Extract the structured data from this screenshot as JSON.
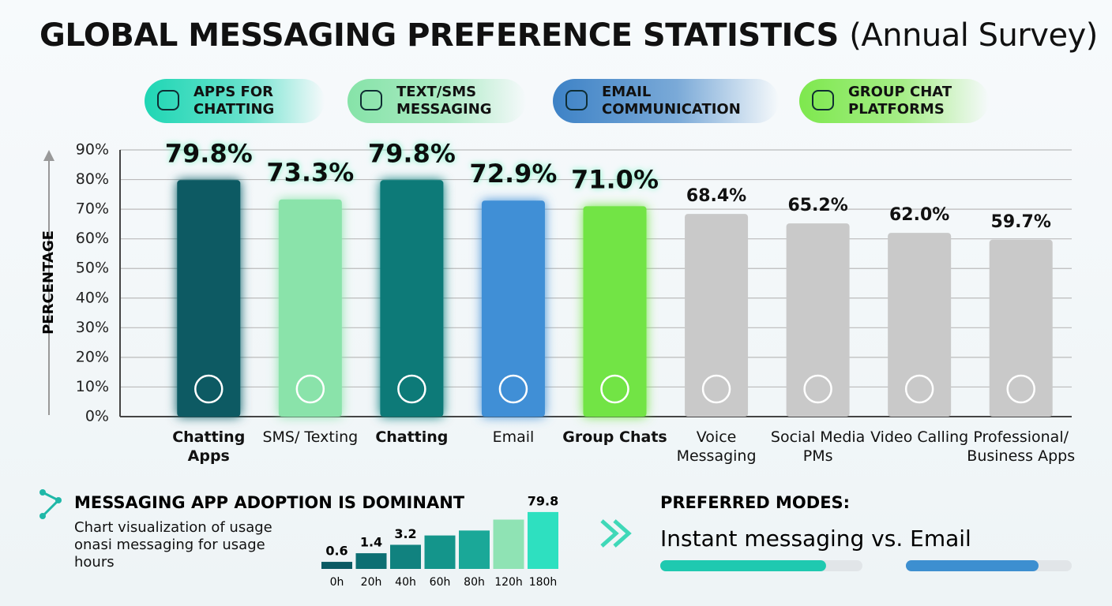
{
  "title": "GLOBAL MESSAGING PREFERENCE STATISTICS",
  "subtitle": "(Annual Survey)",
  "legend": [
    {
      "label": "APPS FOR CHATTING",
      "color": "#1fd6b4"
    },
    {
      "label": "TEXT/SMS MESSAGING",
      "color": "#86e3a8"
    },
    {
      "label": "EMAIL COMMUNICATION",
      "color": "#3d82c6"
    },
    {
      "label": "GROUP CHAT PLATFORMS",
      "color": "#7ee84e"
    }
  ],
  "chart_data": [
    {
      "type": "bar",
      "y_label": "PERCENTAGE",
      "categories": [
        "Chatting Apps",
        "SMS/ Texting",
        "Chatting",
        "Email",
        "Group Chats",
        "Voice Messaging",
        "Social Media PMs",
        "Video Calling",
        "Professional/ Business Apps"
      ],
      "values": [
        79.8,
        73.3,
        79.8,
        72.9,
        71.0,
        68.4,
        65.2,
        62.0,
        59.7
      ],
      "value_labels": [
        "79.8%",
        "73.3%",
        "79.8%",
        "72.9%",
        "71.0%",
        "68.4%",
        "65.2%",
        "62.0%",
        "59.7%"
      ],
      "colors": [
        "#0b5a63",
        "#8ae3aa",
        "#0b7a78",
        "#3f8fd6",
        "#72e445",
        "#c9c9c9",
        "#c9c9c9",
        "#c9c9c9",
        "#c9c9c9"
      ],
      "highlighted": [
        true,
        true,
        true,
        true,
        true,
        false,
        false,
        false,
        false
      ],
      "ylim": [
        0,
        90
      ],
      "yticks": [
        {
          "value": 0,
          "label": "0%"
        },
        {
          "value": 10,
          "label": "10%"
        },
        {
          "value": 20,
          "label": "20%"
        },
        {
          "value": 30,
          "label": "30%"
        },
        {
          "value": 40,
          "label": "40%"
        },
        {
          "value": 50,
          "label": "50%"
        },
        {
          "value": 60,
          "label": "60%"
        },
        {
          "value": 70,
          "label": "70%"
        },
        {
          "value": 80,
          "label": "80%"
        },
        {
          "value": 90,
          "label": "90%"
        }
      ],
      "grid": true
    },
    {
      "type": "bar",
      "title": "MESSAGING APP ADOPTION IS DOMINANT",
      "subtitle": "Chart visualization of usage onasi messaging for usage hours",
      "categories": [
        "0h",
        "20h",
        "40h",
        "60h",
        "80h",
        "120h",
        "180h"
      ],
      "values": [
        0.6,
        1.4,
        3.2,
        8,
        13,
        38,
        79.8
      ],
      "value_labels": [
        "0.6",
        "1.4",
        "3.2",
        null,
        null,
        null,
        "79.8"
      ],
      "colors": [
        "#0b5a63",
        "#0d6f73",
        "#11827f",
        "#14958b",
        "#1aa898",
        "#8fe3b4",
        "#2ee0c0"
      ],
      "ylim": [
        0.3,
        100
      ],
      "log": true
    },
    {
      "type": "progress",
      "title": "PREFERRED MODES:",
      "subtitle": "Instant messaging vs. Email",
      "values": [
        82,
        80
      ],
      "colors": [
        "#1fc9b0",
        "#3d8fd0"
      ],
      "xlim": [
        0,
        100
      ]
    }
  ]
}
